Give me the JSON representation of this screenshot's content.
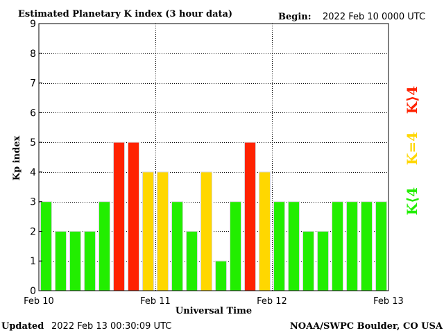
{
  "header": {
    "title": "Estimated Planetary K index (3 hour data)",
    "begin_label": "Begin:",
    "begin_value": "2022 Feb 10 0000 UTC"
  },
  "footer": {
    "updated_label": "Updated",
    "updated_value": "2022 Feb 13 00:30:09 UTC",
    "source": "NOAA/SWPC Boulder, CO USA"
  },
  "legend": {
    "high": "K⟩4",
    "equal": "K=4",
    "low": "K⟨4"
  },
  "colors": {
    "low": "#22ee00",
    "equal": "#ffd700",
    "high": "#ff2200",
    "bar_edge": "#d8d8d8"
  },
  "chart_data": {
    "type": "bar",
    "title": "Estimated Planetary K index (3 hour data)",
    "xlabel": "Universal Time",
    "ylabel": "Kp index",
    "ylim": [
      0,
      9
    ],
    "yticks": [
      "0",
      "1",
      "2",
      "3",
      "4",
      "5",
      "6",
      "7",
      "8",
      "9"
    ],
    "xticks": [
      "Feb 10",
      "Feb 11",
      "Feb 12",
      "Feb 13"
    ],
    "grid": true,
    "values": [
      3,
      2,
      2,
      2,
      3,
      5,
      5,
      4,
      4,
      3,
      2,
      4,
      1,
      3,
      5,
      4,
      3,
      3,
      2,
      2,
      3,
      3,
      3,
      3
    ]
  }
}
